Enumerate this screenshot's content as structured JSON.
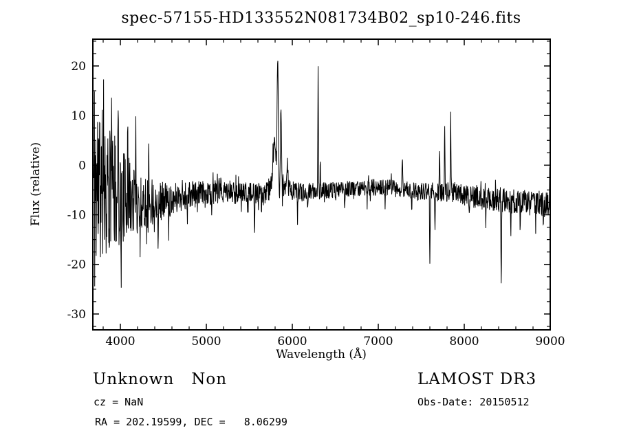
{
  "colors": {
    "background": "#ffffff",
    "line": "#000000",
    "axis": "#000000"
  },
  "annotations": {
    "class_label": "Unknown   Non",
    "cz": "cz = NaN",
    "ra_dec": "RA = 202.19599, DEC =   8.06299",
    "survey": "LAMOST DR3",
    "obs_date": "Obs-Date: 20150512"
  },
  "chart_data": {
    "type": "line",
    "title": "spec-57155-HD133552N081734B02_sp10-246.fits",
    "xlabel": "Wavelength (Å)",
    "ylabel": "Flux (relative)",
    "xlim": [
      3680,
      9000
    ],
    "ylim": [
      -33.2,
      25.4
    ],
    "xticks": [
      4000,
      5000,
      6000,
      7000,
      8000,
      9000
    ],
    "yticks": [
      -30,
      -20,
      -10,
      0,
      10,
      20
    ],
    "x_minor_step": 200,
    "y_minor_step": 2.5,
    "grid": false,
    "legend": "none",
    "x_start": 3692,
    "x_end": 8997,
    "n_points": 1600,
    "seed": 11,
    "baseline": [
      [
        3690,
        -3
      ],
      [
        3740,
        -4
      ],
      [
        3800,
        -4
      ],
      [
        3900,
        -5
      ],
      [
        4000,
        -6
      ],
      [
        4150,
        -7
      ],
      [
        4300,
        -7.5
      ],
      [
        4500,
        -7
      ],
      [
        4800,
        -6
      ],
      [
        5100,
        -5.5
      ],
      [
        5400,
        -5.5
      ],
      [
        5650,
        -6
      ],
      [
        5750,
        -5
      ],
      [
        5980,
        -5
      ],
      [
        6100,
        -5.5
      ],
      [
        6500,
        -5
      ],
      [
        6900,
        -4.5
      ],
      [
        7100,
        -4.5
      ],
      [
        7300,
        -5
      ],
      [
        7600,
        -5.5
      ],
      [
        7900,
        -5.5
      ],
      [
        8100,
        -6.5
      ],
      [
        8400,
        -7
      ],
      [
        8700,
        -7.5
      ],
      [
        9000,
        -8
      ]
    ],
    "noise_amp": [
      [
        3690,
        27
      ],
      [
        3710,
        24
      ],
      [
        3740,
        20
      ],
      [
        3780,
        16
      ],
      [
        3850,
        13
      ],
      [
        3950,
        11
      ],
      [
        4050,
        9
      ],
      [
        4150,
        7.5
      ],
      [
        4250,
        6
      ],
      [
        4400,
        4.5
      ],
      [
        4600,
        3.2
      ],
      [
        4900,
        2.6
      ],
      [
        5300,
        2.4
      ],
      [
        5700,
        2.2
      ],
      [
        6000,
        2.0
      ],
      [
        6400,
        1.7
      ],
      [
        6800,
        1.6
      ],
      [
        7200,
        1.8
      ],
      [
        7600,
        2.0
      ],
      [
        8000,
        2.2
      ],
      [
        8400,
        2.4
      ],
      [
        8800,
        2.6
      ],
      [
        9000,
        3.0
      ]
    ],
    "features": [
      {
        "type": "peak",
        "x": 3805,
        "amp": 26,
        "w": 3
      },
      {
        "type": "peak",
        "x": 3900,
        "amp": 24,
        "w": 3
      },
      {
        "type": "peak",
        "x": 3975,
        "amp": 20,
        "w": 3
      },
      {
        "type": "peak",
        "x": 4085,
        "amp": 22,
        "w": 3
      },
      {
        "type": "peak",
        "x": 4180,
        "amp": 14,
        "w": 3
      },
      {
        "type": "peak",
        "x": 4330,
        "amp": 10,
        "w": 3
      },
      {
        "type": "dip",
        "x": 3870,
        "amp": 20,
        "w": 3
      },
      {
        "type": "dip",
        "x": 4010,
        "amp": 16,
        "w": 3
      },
      {
        "type": "dip",
        "x": 4230,
        "amp": 12,
        "w": 3
      },
      {
        "type": "dip",
        "x": 4440,
        "amp": 8,
        "w": 3
      },
      {
        "type": "dip",
        "x": 4560,
        "amp": 6,
        "w": 3
      },
      {
        "type": "dip",
        "x": 4780,
        "amp": 5,
        "w": 4
      },
      {
        "type": "dip",
        "x": 5060,
        "amp": 4,
        "w": 3
      },
      {
        "type": "dip",
        "x": 5560,
        "amp": 8,
        "w": 5
      },
      {
        "type": "dip",
        "x": 5640,
        "amp": 5,
        "w": 3
      },
      {
        "type": "peak",
        "x": 5792,
        "amp": 9,
        "w": 28
      },
      {
        "type": "peak",
        "x": 5830,
        "amp": 26,
        "w": 9
      },
      {
        "type": "peak",
        "x": 5868,
        "amp": 17,
        "w": 8
      },
      {
        "type": "peak",
        "x": 5940,
        "amp": 5,
        "w": 12
      },
      {
        "type": "dip",
        "x": 6060,
        "amp": 6,
        "w": 3
      },
      {
        "type": "dip",
        "x": 6180,
        "amp": 4,
        "w": 3
      },
      {
        "type": "peak",
        "x": 6300,
        "amp": 27,
        "w": 4
      },
      {
        "type": "peak",
        "x": 6325,
        "amp": 8,
        "w": 3
      },
      {
        "type": "dip",
        "x": 6610,
        "amp": 4,
        "w": 3
      },
      {
        "type": "dip",
        "x": 6870,
        "amp": 5,
        "w": 3
      },
      {
        "type": "dip",
        "x": 7080,
        "amp": 4,
        "w": 3
      },
      {
        "type": "peak",
        "x": 7280,
        "amp": 5,
        "w": 7
      },
      {
        "type": "dip",
        "x": 7390,
        "amp": 4,
        "w": 3
      },
      {
        "type": "dip",
        "x": 7600,
        "amp": 16,
        "w": 5
      },
      {
        "type": "dip",
        "x": 7660,
        "amp": 7,
        "w": 4
      },
      {
        "type": "peak",
        "x": 7712,
        "amp": 7,
        "w": 5
      },
      {
        "type": "peak",
        "x": 7772,
        "amp": 13,
        "w": 5
      },
      {
        "type": "peak",
        "x": 7842,
        "amp": 15,
        "w": 5
      },
      {
        "type": "dip",
        "x": 8060,
        "amp": 5,
        "w": 3
      },
      {
        "type": "dip",
        "x": 8250,
        "amp": 5,
        "w": 3
      },
      {
        "type": "dip",
        "x": 8430,
        "amp": 17,
        "w": 5
      },
      {
        "type": "dip",
        "x": 8540,
        "amp": 7,
        "w": 4
      },
      {
        "type": "dip",
        "x": 8650,
        "amp": 6,
        "w": 4
      },
      {
        "type": "dip",
        "x": 8830,
        "amp": 6,
        "w": 3
      },
      {
        "type": "dip",
        "x": 8920,
        "amp": 5,
        "w": 3
      },
      {
        "type": "peak",
        "x": 8995,
        "amp": 9,
        "w": 4
      }
    ]
  }
}
